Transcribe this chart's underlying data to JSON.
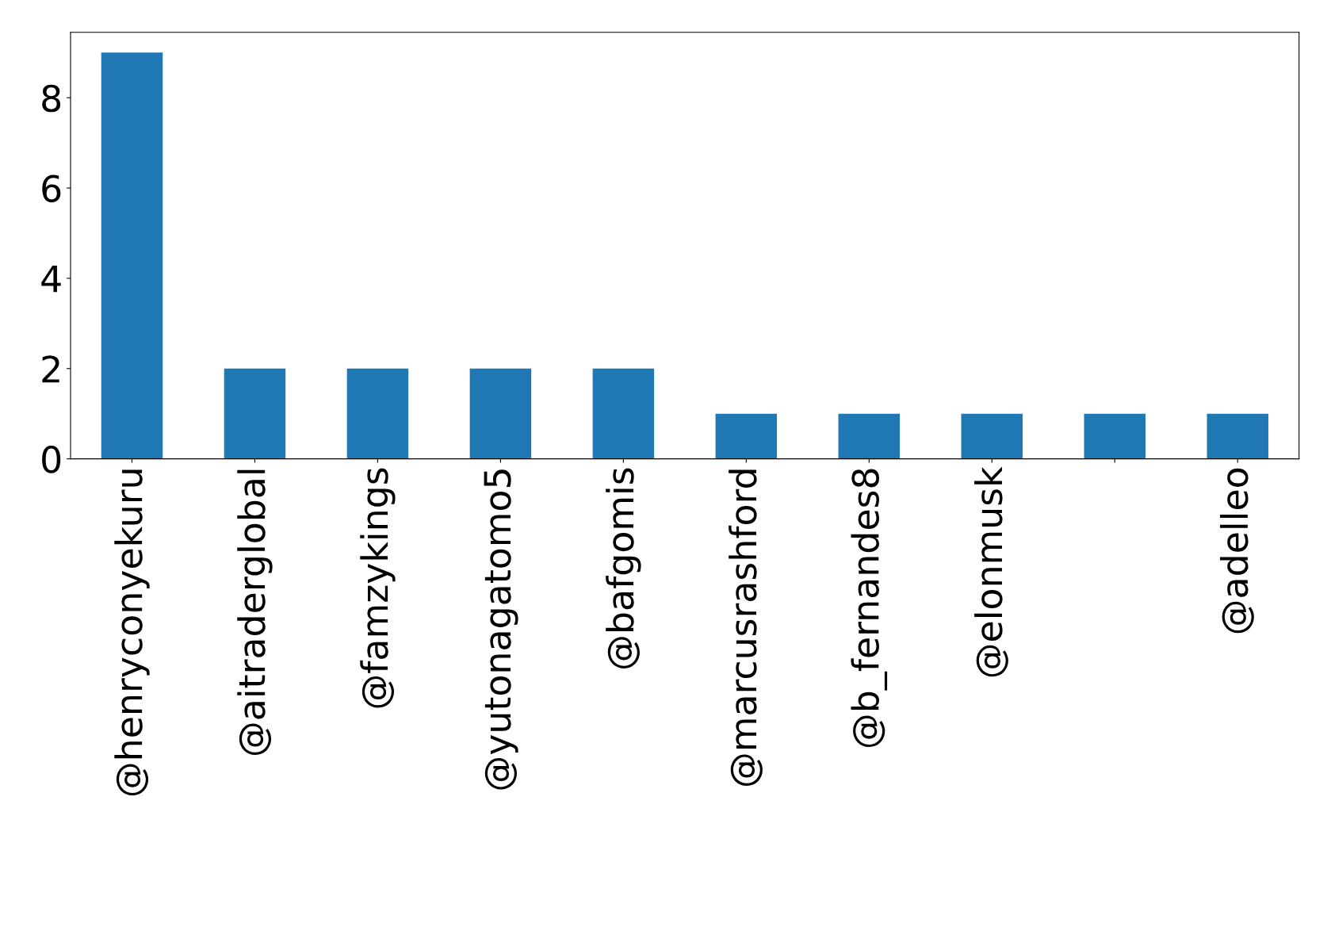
{
  "chart_data": {
    "type": "bar",
    "categories": [
      "@henryconyekuru",
      "@aitraderglobal",
      "@famzykings",
      "@yutonagatomo5",
      "@bafgomis",
      "@marcusrashford",
      "@b_fernandes8",
      "@elonmusk",
      null,
      "@adelleo"
    ],
    "values": [
      9,
      2,
      2,
      2,
      2,
      1,
      1,
      1,
      1,
      1
    ],
    "color": "#1f77b4",
    "ylim": [
      0,
      9.45
    ],
    "yticks": [
      0,
      2,
      4,
      6,
      8
    ],
    "grid": false,
    "legend": false
  }
}
